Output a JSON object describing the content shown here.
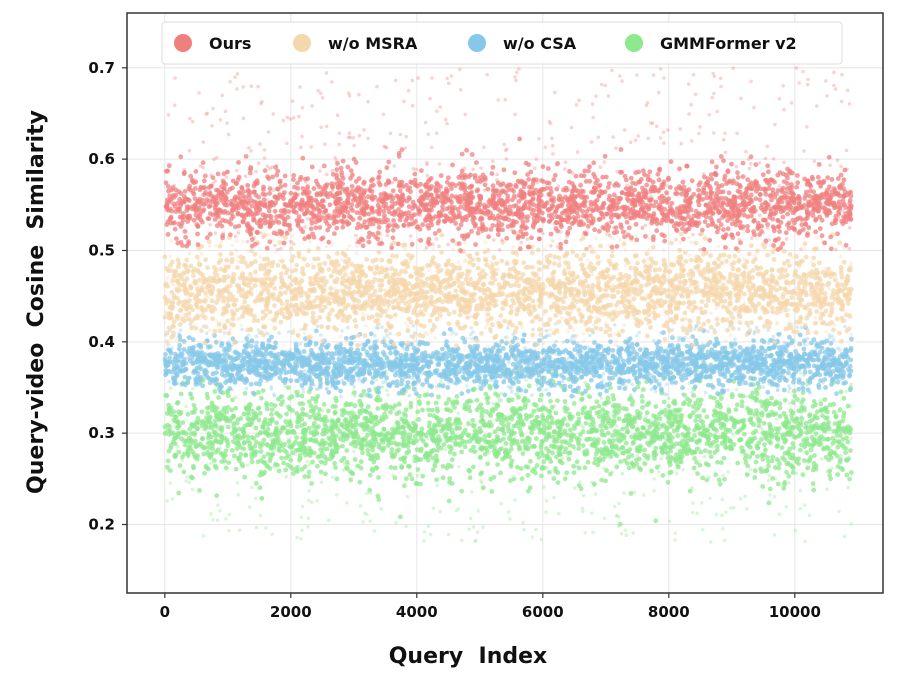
{
  "chart_data": {
    "type": "scatter",
    "title": "",
    "xlabel": "Query  Index",
    "ylabel": "Query-video  Cosine  Similarity",
    "xlim": [
      -600,
      11400
    ],
    "ylim": [
      0.125,
      0.76
    ],
    "xticks": [
      0,
      2000,
      4000,
      6000,
      8000,
      10000
    ],
    "xtick_labels": [
      "0",
      "2000",
      "4000",
      "6000",
      "8000",
      "10000"
    ],
    "yticks": [
      0.2,
      0.3,
      0.4,
      0.5,
      0.6,
      0.7
    ],
    "ytick_labels": [
      "0.2",
      "0.3",
      "0.4",
      "0.5",
      "0.6",
      "0.7"
    ],
    "grid": true,
    "legend_position": "top",
    "n_queries": 10900,
    "series": [
      {
        "name": "Ours",
        "color": "#f08080",
        "mean": 0.55,
        "core_range": [
          0.515,
          0.59
        ],
        "spread_range": [
          0.5,
          0.7
        ]
      },
      {
        "name": "w/o MSRA",
        "color": "#f5d7ac",
        "mean": 0.455,
        "core_range": [
          0.41,
          0.5
        ],
        "spread_range": [
          0.395,
          0.52
        ]
      },
      {
        "name": "w/o CSA",
        "color": "#87c8e8",
        "mean": 0.375,
        "core_range": [
          0.35,
          0.4
        ],
        "spread_range": [
          0.34,
          0.42
        ]
      },
      {
        "name": "GMMFormer v2",
        "color": "#8ee88e",
        "mean": 0.3,
        "core_range": [
          0.255,
          0.35
        ],
        "spread_range": [
          0.18,
          0.37
        ]
      }
    ]
  }
}
